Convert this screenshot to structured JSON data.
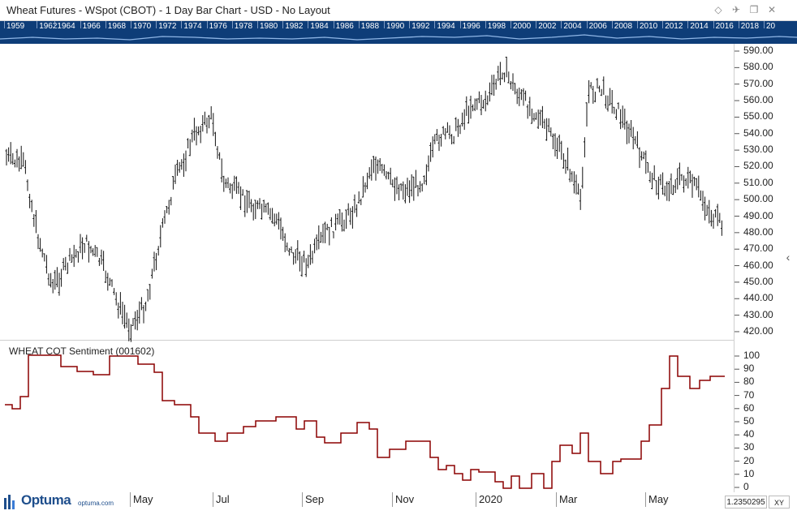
{
  "window": {
    "title": "Wheat Futures - WSpot (CBOT) - 1 Day Bar Chart - USD - No Layout",
    "controls": [
      "diamond-icon",
      "pin-icon",
      "restore-icon",
      "close-icon"
    ]
  },
  "year_bar": {
    "labels": [
      "1959",
      "1962",
      "1964",
      "1966",
      "1968",
      "1970",
      "1972",
      "1974",
      "1976",
      "1978",
      "1980",
      "1982",
      "1984",
      "1986",
      "1988",
      "1990",
      "1992",
      "1994",
      "1996",
      "1998",
      "2000",
      "2002",
      "2004",
      "2006",
      "2008",
      "2010",
      "2012",
      "2014",
      "2016",
      "2018",
      "20"
    ]
  },
  "price_axis": {
    "labels": [
      "590.00",
      "580.00",
      "570.00",
      "560.00",
      "550.00",
      "540.00",
      "530.00",
      "520.00",
      "510.00",
      "500.00",
      "490.00",
      "480.00",
      "470.00",
      "460.00",
      "450.00",
      "440.00",
      "430.00",
      "420.00"
    ]
  },
  "indicator": {
    "title": "WHEAT COT Sentiment (001602)",
    "axis_labels": [
      "100",
      "90",
      "80",
      "70",
      "60",
      "50",
      "40",
      "30",
      "20",
      "10",
      "0"
    ],
    "color": "#8b0000"
  },
  "time_axis": {
    "labels": [
      "May",
      "Jul",
      "Sep",
      "Nov",
      "2020",
      "Mar",
      "May"
    ]
  },
  "footer": {
    "logo_text": "Optuma",
    "logo_url": "optuma.com",
    "price_value": "1.2350295",
    "xy_label": "XY"
  },
  "colors": {
    "year_bar_bg": "#0e3d78",
    "bars": "#111111",
    "indicator_line": "#8b0000"
  }
}
